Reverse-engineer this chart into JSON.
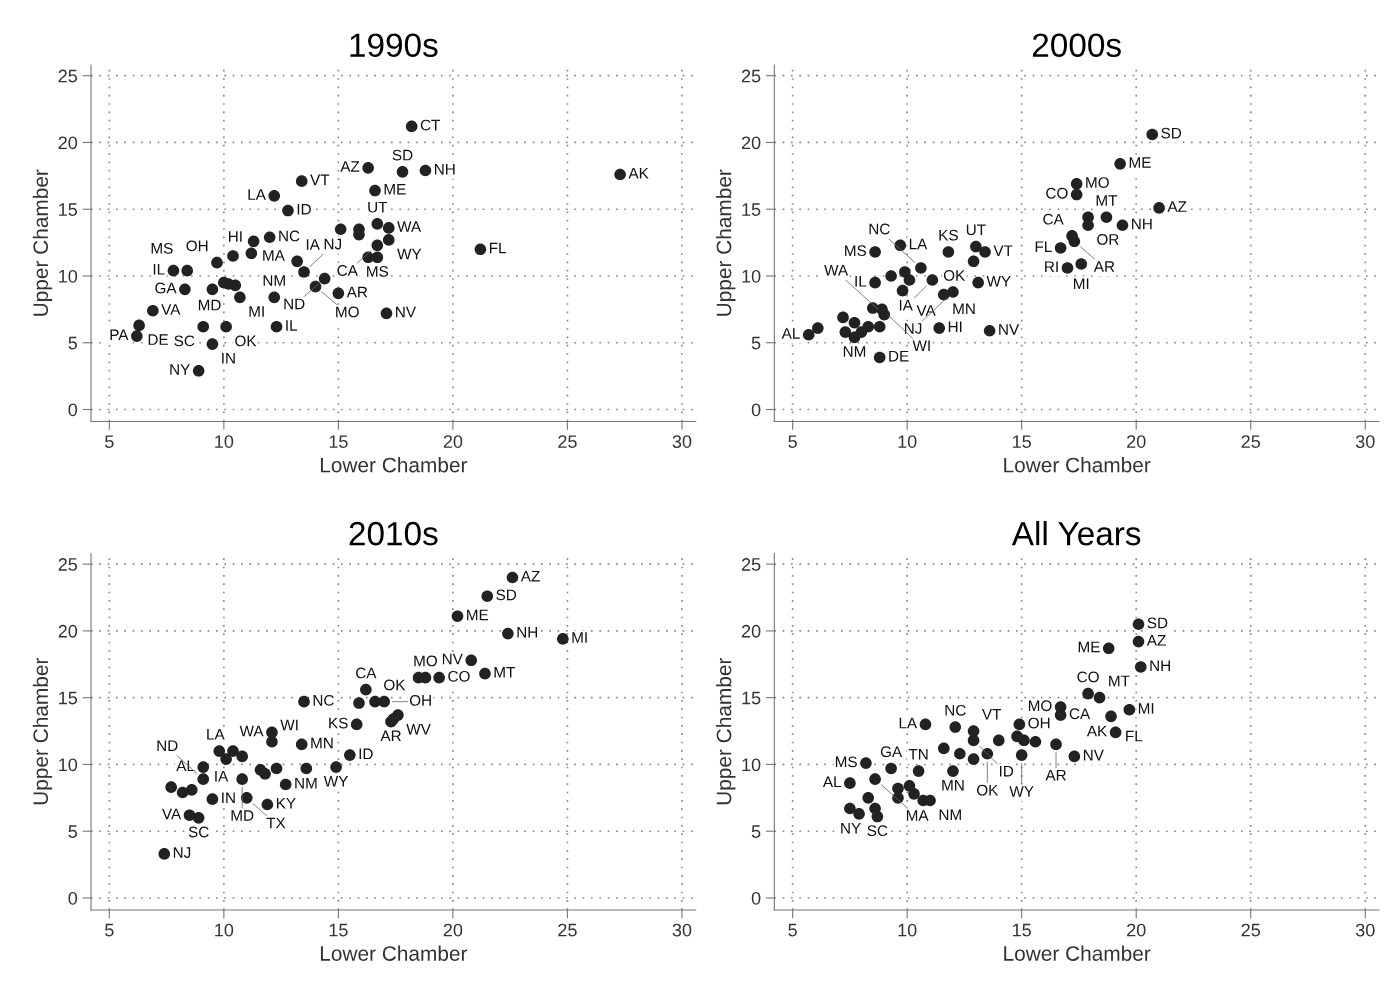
{
  "chart_data": [
    {
      "type": "scatter",
      "title": "1990s",
      "xlabel": "Lower Chamber",
      "ylabel": "Upper Chamber",
      "color": "#222222",
      "marker": "circle",
      "grid": true,
      "xlim": [
        4.2,
        30.6
      ],
      "ylim": [
        -0.9,
        25.8
      ],
      "xticks": [
        5,
        10,
        15,
        20,
        25,
        30
      ],
      "yticks": [
        0,
        5,
        10,
        15,
        20,
        25
      ],
      "x": [
        18.2,
        16.3,
        17.8,
        18.8,
        13.4,
        12.2,
        16.6,
        12.8,
        27.3,
        21.2,
        16.7,
        17.2,
        17.2,
        16.7,
        16.7,
        15.1,
        15.9,
        15.9,
        16.3,
        12.0,
        11.3,
        11.2,
        10.4,
        9.7,
        13.2,
        13.5,
        14.4,
        14.0,
        15.0,
        12.2,
        10.7,
        10.0,
        10.2,
        10.5,
        8.3,
        9.5,
        7.8,
        8.4,
        6.9,
        6.3,
        6.2,
        9.1,
        10.1,
        12.3,
        9.5,
        8.9,
        17.1
      ],
      "values": [
        21.2,
        18.1,
        17.8,
        17.9,
        17.1,
        16.0,
        16.4,
        14.9,
        17.6,
        12.0,
        13.9,
        13.6,
        12.7,
        12.3,
        11.4,
        13.5,
        13.5,
        13.1,
        11.4,
        12.9,
        12.6,
        11.7,
        11.5,
        11.0,
        11.1,
        10.3,
        9.8,
        9.2,
        8.7,
        8.4,
        8.4,
        9.5,
        9.4,
        9.3,
        9.0,
        9.0,
        10.4,
        10.4,
        7.4,
        6.3,
        5.5,
        6.2,
        6.2,
        6.2,
        4.9,
        2.9,
        7.2
      ],
      "annotations": [
        {
          "text": "CT",
          "x": 18.2,
          "y": 21.2
        },
        {
          "text": "AZ",
          "x": 16.3,
          "y": 18.1
        },
        {
          "text": "SD",
          "x": 17.8,
          "y": 17.8
        },
        {
          "text": "NH",
          "x": 18.8,
          "y": 17.9
        },
        {
          "text": "VT",
          "x": 13.4,
          "y": 17.1
        },
        {
          "text": "LA",
          "x": 12.2,
          "y": 16.0
        },
        {
          "text": "ME",
          "x": 16.6,
          "y": 16.4
        },
        {
          "text": "ID",
          "x": 12.8,
          "y": 14.9
        },
        {
          "text": "AK",
          "x": 27.3,
          "y": 17.6
        },
        {
          "text": "FL",
          "x": 21.2,
          "y": 12.0
        },
        {
          "text": "UT",
          "x": 16.7,
          "y": 13.9
        },
        {
          "text": "WA",
          "x": 17.2,
          "y": 13.6
        },
        {
          "text": "WY",
          "x": 17.2,
          "y": 12.7
        },
        {
          "text": "CA",
          "x": 16.7,
          "y": 12.3
        },
        {
          "text": "MS",
          "x": 16.7,
          "y": 11.4
        },
        {
          "text": "NC",
          "x": 12.0,
          "y": 12.9
        },
        {
          "text": "MA",
          "x": 11.3,
          "y": 12.6
        },
        {
          "text": "HI",
          "x": 11.2,
          "y": 11.7
        },
        {
          "text": "OH",
          "x": 9.7,
          "y": 11.0
        },
        {
          "text": "IA",
          "x": 13.2,
          "y": 11.1
        },
        {
          "text": "NJ",
          "x": 13.5,
          "y": 10.3
        },
        {
          "text": "ND",
          "x": 14.4,
          "y": 9.8
        },
        {
          "text": "MO",
          "x": 14.0,
          "y": 9.2
        },
        {
          "text": "AR",
          "x": 15.0,
          "y": 8.7
        },
        {
          "text": "NM",
          "x": 12.2,
          "y": 8.4
        },
        {
          "text": "MI",
          "x": 10.7,
          "y": 8.4
        },
        {
          "text": "MD",
          "x": 10.5,
          "y": 9.3
        },
        {
          "text": "GA",
          "x": 8.3,
          "y": 9.0
        },
        {
          "text": "IL",
          "x": 7.8,
          "y": 10.4
        },
        {
          "text": "MS",
          "x": 8.4,
          "y": 10.4
        },
        {
          "text": "VA",
          "x": 6.9,
          "y": 7.4
        },
        {
          "text": "DE",
          "x": 6.3,
          "y": 6.3
        },
        {
          "text": "PA",
          "x": 6.2,
          "y": 5.5
        },
        {
          "text": "SC",
          "x": 9.1,
          "y": 6.2
        },
        {
          "text": "OK",
          "x": 10.1,
          "y": 6.2
        },
        {
          "text": "IL",
          "x": 12.3,
          "y": 6.2
        },
        {
          "text": "IN",
          "x": 9.5,
          "y": 4.9
        },
        {
          "text": "NY",
          "x": 8.9,
          "y": 2.9
        },
        {
          "text": "NV",
          "x": 17.1,
          "y": 7.2
        }
      ]
    },
    {
      "type": "scatter",
      "title": "2000s",
      "xlabel": "Lower Chamber",
      "ylabel": "Upper Chamber",
      "color": "#222222",
      "marker": "circle",
      "grid": true,
      "xlim": [
        4.2,
        30.6
      ],
      "ylim": [
        -0.9,
        25.8
      ],
      "xticks": [
        5,
        10,
        15,
        20,
        25,
        30
      ],
      "yticks": [
        0,
        5,
        10,
        15,
        20,
        25
      ],
      "x": [
        20.7,
        19.3,
        17.4,
        17.4,
        21.0,
        17.9,
        18.7,
        19.4,
        17.9,
        17.2,
        17.3,
        16.7,
        17.0,
        17.6,
        9.7,
        8.6,
        11.8,
        13.0,
        13.4,
        12.9,
        10.6,
        8.6,
        9.3,
        9.9,
        10.1,
        11.1,
        9.8,
        11.6,
        12.0,
        13.1,
        8.9,
        8.5,
        9.0,
        7.2,
        7.7,
        7.3,
        8.0,
        8.3,
        7.7,
        8.8,
        5.7,
        6.1,
        11.4,
        13.6,
        8.8
      ],
      "values": [
        20.6,
        18.4,
        16.9,
        16.1,
        15.1,
        14.4,
        14.4,
        13.8,
        13.8,
        13.0,
        12.6,
        12.1,
        10.6,
        10.9,
        12.3,
        11.8,
        11.8,
        12.2,
        11.8,
        11.1,
        10.6,
        9.5,
        10.0,
        10.3,
        9.7,
        9.7,
        8.9,
        8.6,
        8.8,
        9.5,
        7.5,
        7.6,
        7.1,
        6.9,
        6.5,
        5.8,
        5.8,
        6.2,
        5.4,
        6.2,
        5.6,
        6.1,
        6.1,
        5.9,
        3.9
      ],
      "annotations": [
        {
          "text": "SD",
          "x": 20.7,
          "y": 20.6
        },
        {
          "text": "ME",
          "x": 19.3,
          "y": 18.4
        },
        {
          "text": "MO",
          "x": 17.4,
          "y": 16.9
        },
        {
          "text": "CO",
          "x": 17.4,
          "y": 16.1
        },
        {
          "text": "AZ",
          "x": 21.0,
          "y": 15.1
        },
        {
          "text": "MT",
          "x": 18.7,
          "y": 14.4
        },
        {
          "text": "NH",
          "x": 19.4,
          "y": 13.8
        },
        {
          "text": "OR",
          "x": 17.9,
          "y": 13.8
        },
        {
          "text": "CA",
          "x": 17.2,
          "y": 13.0
        },
        {
          "text": "AR",
          "x": 17.3,
          "y": 12.6
        },
        {
          "text": "FL",
          "x": 16.7,
          "y": 12.1
        },
        {
          "text": "RI",
          "x": 17.0,
          "y": 10.6
        },
        {
          "text": "MI",
          "x": 17.6,
          "y": 10.9
        },
        {
          "text": "LA",
          "x": 9.7,
          "y": 12.3
        },
        {
          "text": "MS",
          "x": 8.6,
          "y": 11.8
        },
        {
          "text": "KS",
          "x": 11.8,
          "y": 11.8
        },
        {
          "text": "UT",
          "x": 13.0,
          "y": 12.2
        },
        {
          "text": "VT",
          "x": 13.4,
          "y": 11.8
        },
        {
          "text": "OK",
          "x": 12.9,
          "y": 11.1
        },
        {
          "text": "NC",
          "x": 10.6,
          "y": 10.6
        },
        {
          "text": "IL",
          "x": 8.6,
          "y": 9.5
        },
        {
          "text": "IA",
          "x": 11.1,
          "y": 9.7
        },
        {
          "text": "VA",
          "x": 9.8,
          "y": 8.9
        },
        {
          "text": "MN",
          "x": 11.6,
          "y": 8.6
        },
        {
          "text": "NJ",
          "x": 12.0,
          "y": 8.8
        },
        {
          "text": "WY",
          "x": 13.1,
          "y": 9.5
        },
        {
          "text": "WI",
          "x": 8.9,
          "y": 7.5
        },
        {
          "text": "WA",
          "x": 9.0,
          "y": 7.1
        },
        {
          "text": "NM",
          "x": 7.7,
          "y": 5.4
        },
        {
          "text": "AL",
          "x": 5.7,
          "y": 5.6
        },
        {
          "text": "HI",
          "x": 11.4,
          "y": 6.1
        },
        {
          "text": "NV",
          "x": 13.6,
          "y": 5.9
        },
        {
          "text": "DE",
          "x": 8.8,
          "y": 3.9
        }
      ]
    },
    {
      "type": "scatter",
      "title": "2010s",
      "xlabel": "Lower Chamber",
      "ylabel": "Upper Chamber",
      "color": "#222222",
      "marker": "circle",
      "grid": true,
      "xlim": [
        4.2,
        30.6
      ],
      "ylim": [
        -0.9,
        25.8
      ],
      "xticks": [
        5,
        10,
        15,
        20,
        25,
        30
      ],
      "yticks": [
        0,
        5,
        10,
        15,
        20,
        25
      ],
      "x": [
        22.6,
        21.5,
        20.2,
        22.4,
        24.8,
        20.8,
        21.4,
        18.5,
        18.8,
        19.4,
        16.2,
        13.5,
        15.9,
        16.6,
        17.0,
        15.8,
        17.3,
        17.6,
        17.4,
        12.1,
        12.1,
        13.4,
        15.5,
        14.9,
        10.4,
        9.8,
        10.1,
        10.8,
        9.1,
        11.6,
        11.8,
        12.3,
        13.6,
        9.1,
        10.8,
        12.7,
        7.7,
        8.2,
        8.6,
        9.5,
        11.0,
        11.9,
        8.5,
        8.9,
        7.4
      ],
      "values": [
        24.0,
        22.6,
        21.1,
        19.8,
        19.4,
        17.8,
        16.8,
        16.5,
        16.5,
        16.5,
        15.6,
        14.7,
        14.6,
        14.7,
        14.7,
        13.0,
        13.2,
        13.7,
        13.4,
        12.4,
        11.7,
        11.5,
        10.7,
        9.8,
        11.0,
        11.0,
        10.4,
        10.6,
        9.8,
        9.6,
        9.3,
        9.7,
        9.7,
        8.9,
        8.9,
        8.5,
        8.3,
        7.9,
        8.1,
        7.4,
        7.5,
        7.0,
        6.2,
        6.0,
        3.3
      ],
      "annotations": [
        {
          "text": "AZ",
          "x": 22.6,
          "y": 24.0
        },
        {
          "text": "SD",
          "x": 21.5,
          "y": 22.6
        },
        {
          "text": "ME",
          "x": 20.2,
          "y": 21.1
        },
        {
          "text": "NH",
          "x": 22.4,
          "y": 19.8
        },
        {
          "text": "MI",
          "x": 24.8,
          "y": 19.4
        },
        {
          "text": "NV",
          "x": 20.8,
          "y": 17.8
        },
        {
          "text": "MT",
          "x": 21.4,
          "y": 16.8
        },
        {
          "text": "MO",
          "x": 18.8,
          "y": 16.5
        },
        {
          "text": "CO",
          "x": 19.4,
          "y": 16.5
        },
        {
          "text": "CA",
          "x": 16.2,
          "y": 15.6
        },
        {
          "text": "NC",
          "x": 13.5,
          "y": 14.7
        },
        {
          "text": "OK",
          "x": 16.6,
          "y": 14.7
        },
        {
          "text": "OH",
          "x": 17.0,
          "y": 14.7
        },
        {
          "text": "KS",
          "x": 15.8,
          "y": 13.0
        },
        {
          "text": "AR",
          "x": 17.3,
          "y": 13.2
        },
        {
          "text": "WV",
          "x": 17.6,
          "y": 13.7
        },
        {
          "text": "WA",
          "x": 12.1,
          "y": 12.4
        },
        {
          "text": "WI",
          "x": 12.1,
          "y": 11.7
        },
        {
          "text": "MN",
          "x": 13.4,
          "y": 11.5
        },
        {
          "text": "ID",
          "x": 15.5,
          "y": 10.7
        },
        {
          "text": "WY",
          "x": 14.9,
          "y": 9.8
        },
        {
          "text": "LA",
          "x": 10.4,
          "y": 11.0
        },
        {
          "text": "IA",
          "x": 10.8,
          "y": 10.6
        },
        {
          "text": "AL",
          "x": 9.1,
          "y": 9.8
        },
        {
          "text": "ND",
          "x": 9.1,
          "y": 8.9
        },
        {
          "text": "MD",
          "x": 10.8,
          "y": 8.9
        },
        {
          "text": "NM",
          "x": 12.7,
          "y": 8.5
        },
        {
          "text": "IN",
          "x": 9.5,
          "y": 7.4
        },
        {
          "text": "TX",
          "x": 11.0,
          "y": 7.5
        },
        {
          "text": "KY",
          "x": 11.9,
          "y": 7.0
        },
        {
          "text": "VA",
          "x": 8.5,
          "y": 6.2
        },
        {
          "text": "SC",
          "x": 8.9,
          "y": 6.0
        },
        {
          "text": "NJ",
          "x": 7.4,
          "y": 3.3
        }
      ]
    },
    {
      "type": "scatter",
      "title": "All Years",
      "xlabel": "Lower Chamber",
      "ylabel": "Upper Chamber",
      "color": "#222222",
      "marker": "circle",
      "grid": true,
      "xlim": [
        4.2,
        30.6
      ],
      "ylim": [
        -0.9,
        25.8
      ],
      "xticks": [
        5,
        10,
        15,
        20,
        25,
        30
      ],
      "yticks": [
        0,
        5,
        10,
        15,
        20,
        25
      ],
      "x": [
        20.1,
        20.1,
        18.8,
        20.2,
        17.9,
        18.4,
        16.7,
        16.7,
        19.7,
        18.9,
        19.1,
        14.9,
        10.8,
        12.1,
        12.9,
        12.9,
        14.0,
        14.8,
        15.1,
        15.6,
        16.5,
        13.5,
        12.3,
        11.6,
        12.9,
        15.0,
        17.3,
        12.0,
        8.2,
        9.3,
        10.5,
        7.5,
        8.6,
        9.6,
        10.1,
        10.3,
        9.6,
        11.0,
        10.7,
        8.3,
        8.6,
        7.5,
        7.9,
        8.7
      ],
      "values": [
        20.5,
        19.2,
        18.7,
        17.3,
        15.3,
        15.0,
        14.3,
        13.7,
        14.1,
        13.6,
        12.4,
        13.0,
        13.0,
        12.8,
        12.5,
        11.8,
        11.8,
        12.1,
        11.8,
        11.7,
        11.5,
        10.8,
        10.8,
        11.2,
        10.4,
        10.7,
        10.6,
        9.5,
        10.1,
        9.7,
        9.5,
        8.6,
        8.9,
        8.2,
        8.4,
        7.8,
        7.5,
        7.3,
        7.3,
        7.5,
        6.7,
        6.7,
        6.3,
        6.1
      ],
      "annotations": [
        {
          "text": "SD",
          "x": 20.1,
          "y": 20.5
        },
        {
          "text": "AZ",
          "x": 20.1,
          "y": 19.2
        },
        {
          "text": "ME",
          "x": 18.8,
          "y": 18.7
        },
        {
          "text": "NH",
          "x": 20.2,
          "y": 17.3
        },
        {
          "text": "CO",
          "x": 17.9,
          "y": 15.3
        },
        {
          "text": "MT",
          "x": 18.4,
          "y": 15.0
        },
        {
          "text": "MO",
          "x": 16.7,
          "y": 14.3
        },
        {
          "text": "CA",
          "x": 16.7,
          "y": 13.7
        },
        {
          "text": "MI",
          "x": 19.7,
          "y": 14.1
        },
        {
          "text": "FL",
          "x": 18.9,
          "y": 13.6
        },
        {
          "text": "AK",
          "x": 19.1,
          "y": 12.4
        },
        {
          "text": "OH",
          "x": 14.9,
          "y": 13.0
        },
        {
          "text": "LA",
          "x": 10.8,
          "y": 13.0
        },
        {
          "text": "NC",
          "x": 12.1,
          "y": 12.8
        },
        {
          "text": "VT",
          "x": 12.9,
          "y": 12.5
        },
        {
          "text": "ID",
          "x": 12.9,
          "y": 11.8
        },
        {
          "text": "AR",
          "x": 16.5,
          "y": 11.5
        },
        {
          "text": "OK",
          "x": 13.5,
          "y": 10.8
        },
        {
          "text": "WY",
          "x": 15.0,
          "y": 10.7
        },
        {
          "text": "NV",
          "x": 17.3,
          "y": 10.6
        },
        {
          "text": "MN",
          "x": 12.0,
          "y": 9.5
        },
        {
          "text": "MS",
          "x": 8.2,
          "y": 10.1
        },
        {
          "text": "GA",
          "x": 9.3,
          "y": 9.7
        },
        {
          "text": "TN",
          "x": 10.5,
          "y": 9.5
        },
        {
          "text": "AL",
          "x": 7.5,
          "y": 8.6
        },
        {
          "text": "MA",
          "x": 8.6,
          "y": 8.9
        },
        {
          "text": "NM",
          "x": 11.0,
          "y": 7.3
        },
        {
          "text": "NY",
          "x": 8.6,
          "y": 6.7
        },
        {
          "text": "SC",
          "x": 8.7,
          "y": 6.1
        }
      ]
    }
  ]
}
